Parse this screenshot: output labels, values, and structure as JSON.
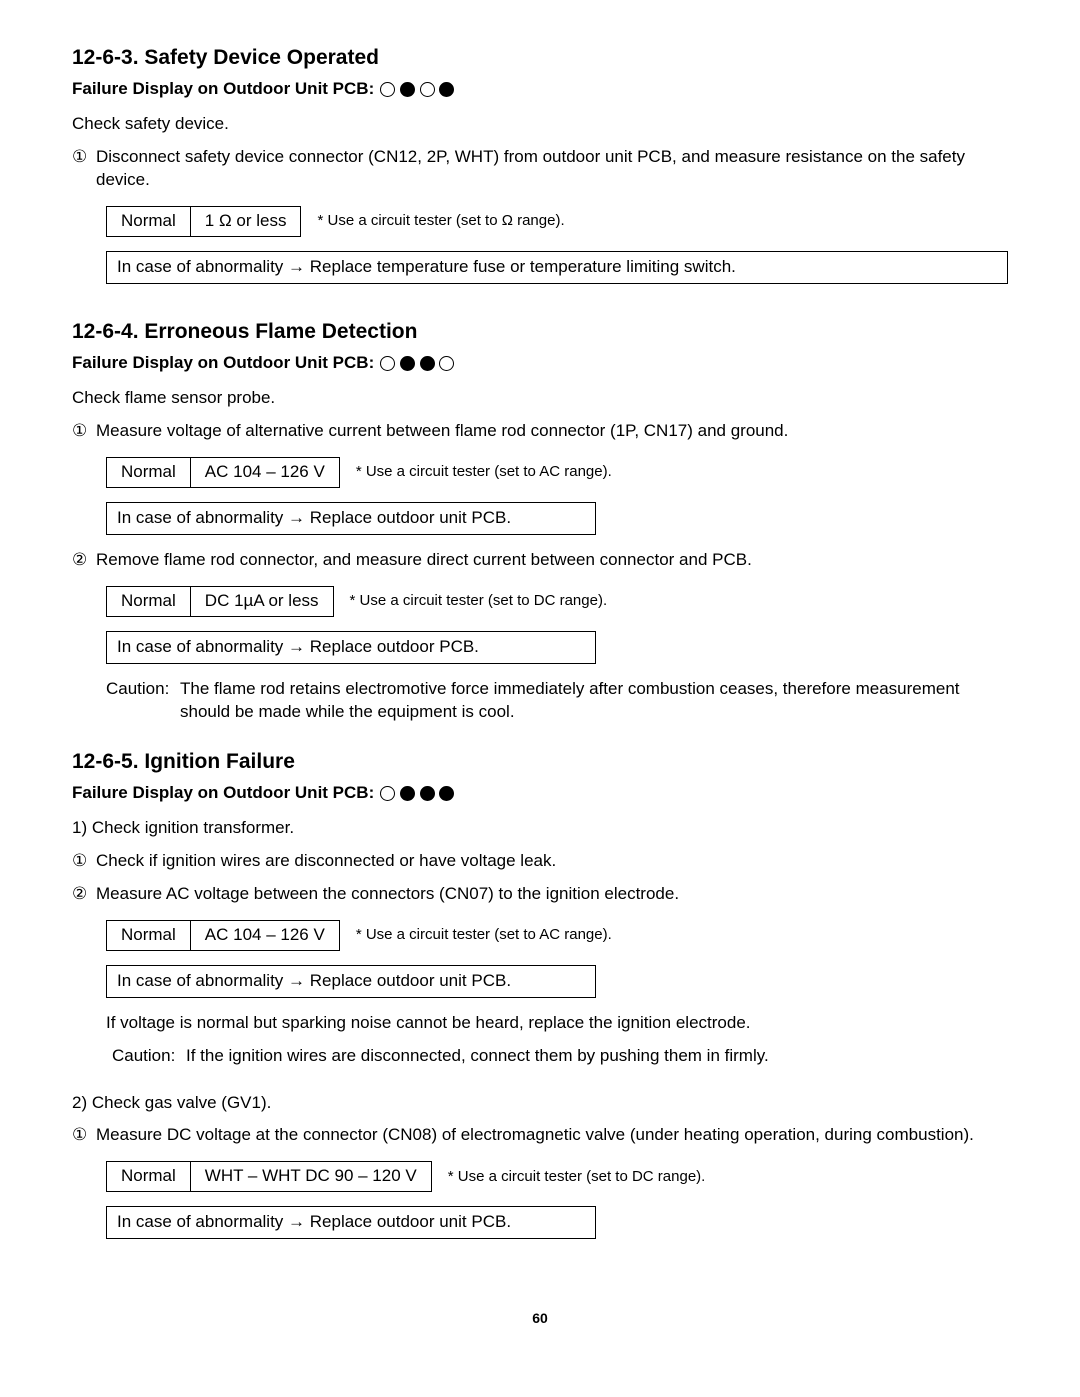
{
  "page_number": "60",
  "failure_label": "Failure Display on Outdoor Unit PCB:",
  "tester_ohm": "* Use a circuit tester (set to Ω range).",
  "tester_ac": "* Use a circuit tester (set to AC range).",
  "tester_dc": "* Use a circuit tester (set to DC range).",
  "normal_label": "Normal",
  "arrow": "→",
  "sections": {
    "s1": {
      "heading": "12-6-3.  Safety Device Operated",
      "leds": [
        "open",
        "filled",
        "open",
        "filled"
      ],
      "intro": "Check safety device.",
      "step1": "Disconnect safety device connector (CN12, 2P, WHT) from outdoor unit PCB, and measure resistance on the safety device.",
      "value1": "1 Ω or less",
      "abn1": "In case of abnormality → Replace temperature fuse or temperature limiting switch."
    },
    "s2": {
      "heading": "12-6-4.  Erroneous Flame Detection",
      "leds": [
        "open",
        "filled",
        "filled",
        "open"
      ],
      "intro": "Check flame sensor probe.",
      "step1": "Measure voltage of alternative current between flame rod connector (1P, CN17) and ground.",
      "value1": "AC 104 – 126 V",
      "abn1": "In case of abnormality → Replace outdoor unit PCB.",
      "step2": "Remove flame rod connector, and measure direct current between connector and PCB.",
      "value2": "DC 1µA or less",
      "abn2": "In case of abnormality → Replace outdoor PCB.",
      "caution": "The flame rod retains electromotive force immediately after combustion ceases, therefore measurement should be made while the equipment is cool."
    },
    "s3": {
      "heading": "12-6-5.  Ignition Failure",
      "leds": [
        "open",
        "filled",
        "filled",
        "filled"
      ],
      "check1": "1) Check ignition transformer.",
      "step1": "Check if ignition wires are disconnected or have voltage leak.",
      "step2": "Measure AC voltage between the connectors (CN07) to the ignition electrode.",
      "value2": "AC 104 – 126 V",
      "abn2": "In case of abnormality → Replace outdoor unit PCB.",
      "note_normal": "If voltage is normal but sparking noise cannot be heard, replace the ignition electrode.",
      "caution": "If the ignition wires are disconnected, connect them by pushing them in firmly.",
      "check2": "2) Check gas valve (GV1).",
      "step3": "Measure DC voltage at the connector (CN08) of electromagnetic valve (under heating operation, during combustion).",
      "value3": "WHT – WHT  DC 90 – 120 V",
      "abn3": "In case of abnormality → Replace outdoor unit PCB."
    }
  }
}
